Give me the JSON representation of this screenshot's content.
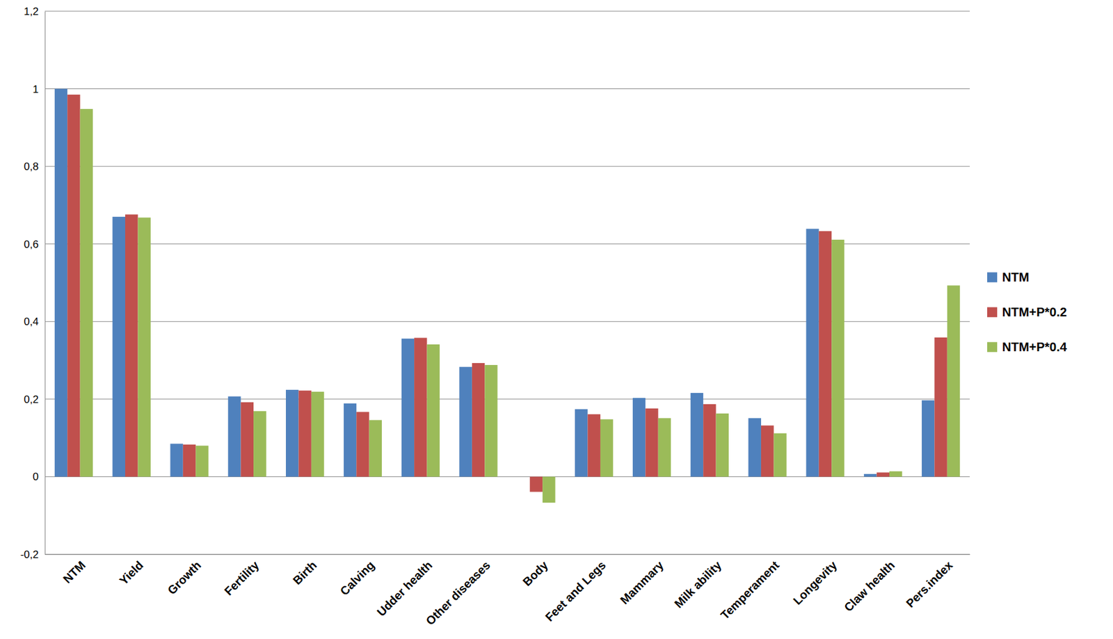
{
  "chart_data": {
    "type": "bar",
    "categories": [
      "NTM",
      "Yield",
      "Growth",
      "Fertility",
      "Birth",
      "Calving",
      "Udder health",
      "Other diseases",
      "Body",
      "Feet and Legs",
      "Mammary",
      "Milk ability",
      "Temperament",
      "Longevity",
      "Claw health",
      "Pers.index"
    ],
    "series": [
      {
        "name": "NTM",
        "color": "#4f81bd",
        "values": [
          1.0,
          0.67,
          0.085,
          0.207,
          0.224,
          0.189,
          0.356,
          0.283,
          0.0,
          0.174,
          0.203,
          0.216,
          0.151,
          0.639,
          0.007,
          0.197
        ]
      },
      {
        "name": "NTM+P*0.2",
        "color": "#c0504d",
        "values": [
          0.985,
          0.676,
          0.083,
          0.192,
          0.222,
          0.167,
          0.358,
          0.293,
          -0.039,
          0.161,
          0.176,
          0.187,
          0.132,
          0.633,
          0.011,
          0.359
        ]
      },
      {
        "name": "NTM+P*0.4",
        "color": "#9bbb59",
        "values": [
          0.948,
          0.668,
          0.08,
          0.169,
          0.219,
          0.146,
          0.341,
          0.288,
          -0.067,
          0.148,
          0.151,
          0.163,
          0.112,
          0.611,
          0.014,
          0.493
        ]
      }
    ],
    "ylim": [
      -0.2,
      1.2
    ],
    "yticks": [
      {
        "value": -0.2,
        "label": "-0,2"
      },
      0,
      {
        "value": 0.2,
        "label": "0,2"
      },
      {
        "value": 0.4,
        "label": "0,4"
      },
      {
        "value": 0.6,
        "label": "0,6"
      },
      {
        "value": 0.8,
        "label": "0,8"
      },
      1,
      {
        "value": 1.2,
        "label": "1,2"
      }
    ],
    "grid": true,
    "legend": "right"
  }
}
